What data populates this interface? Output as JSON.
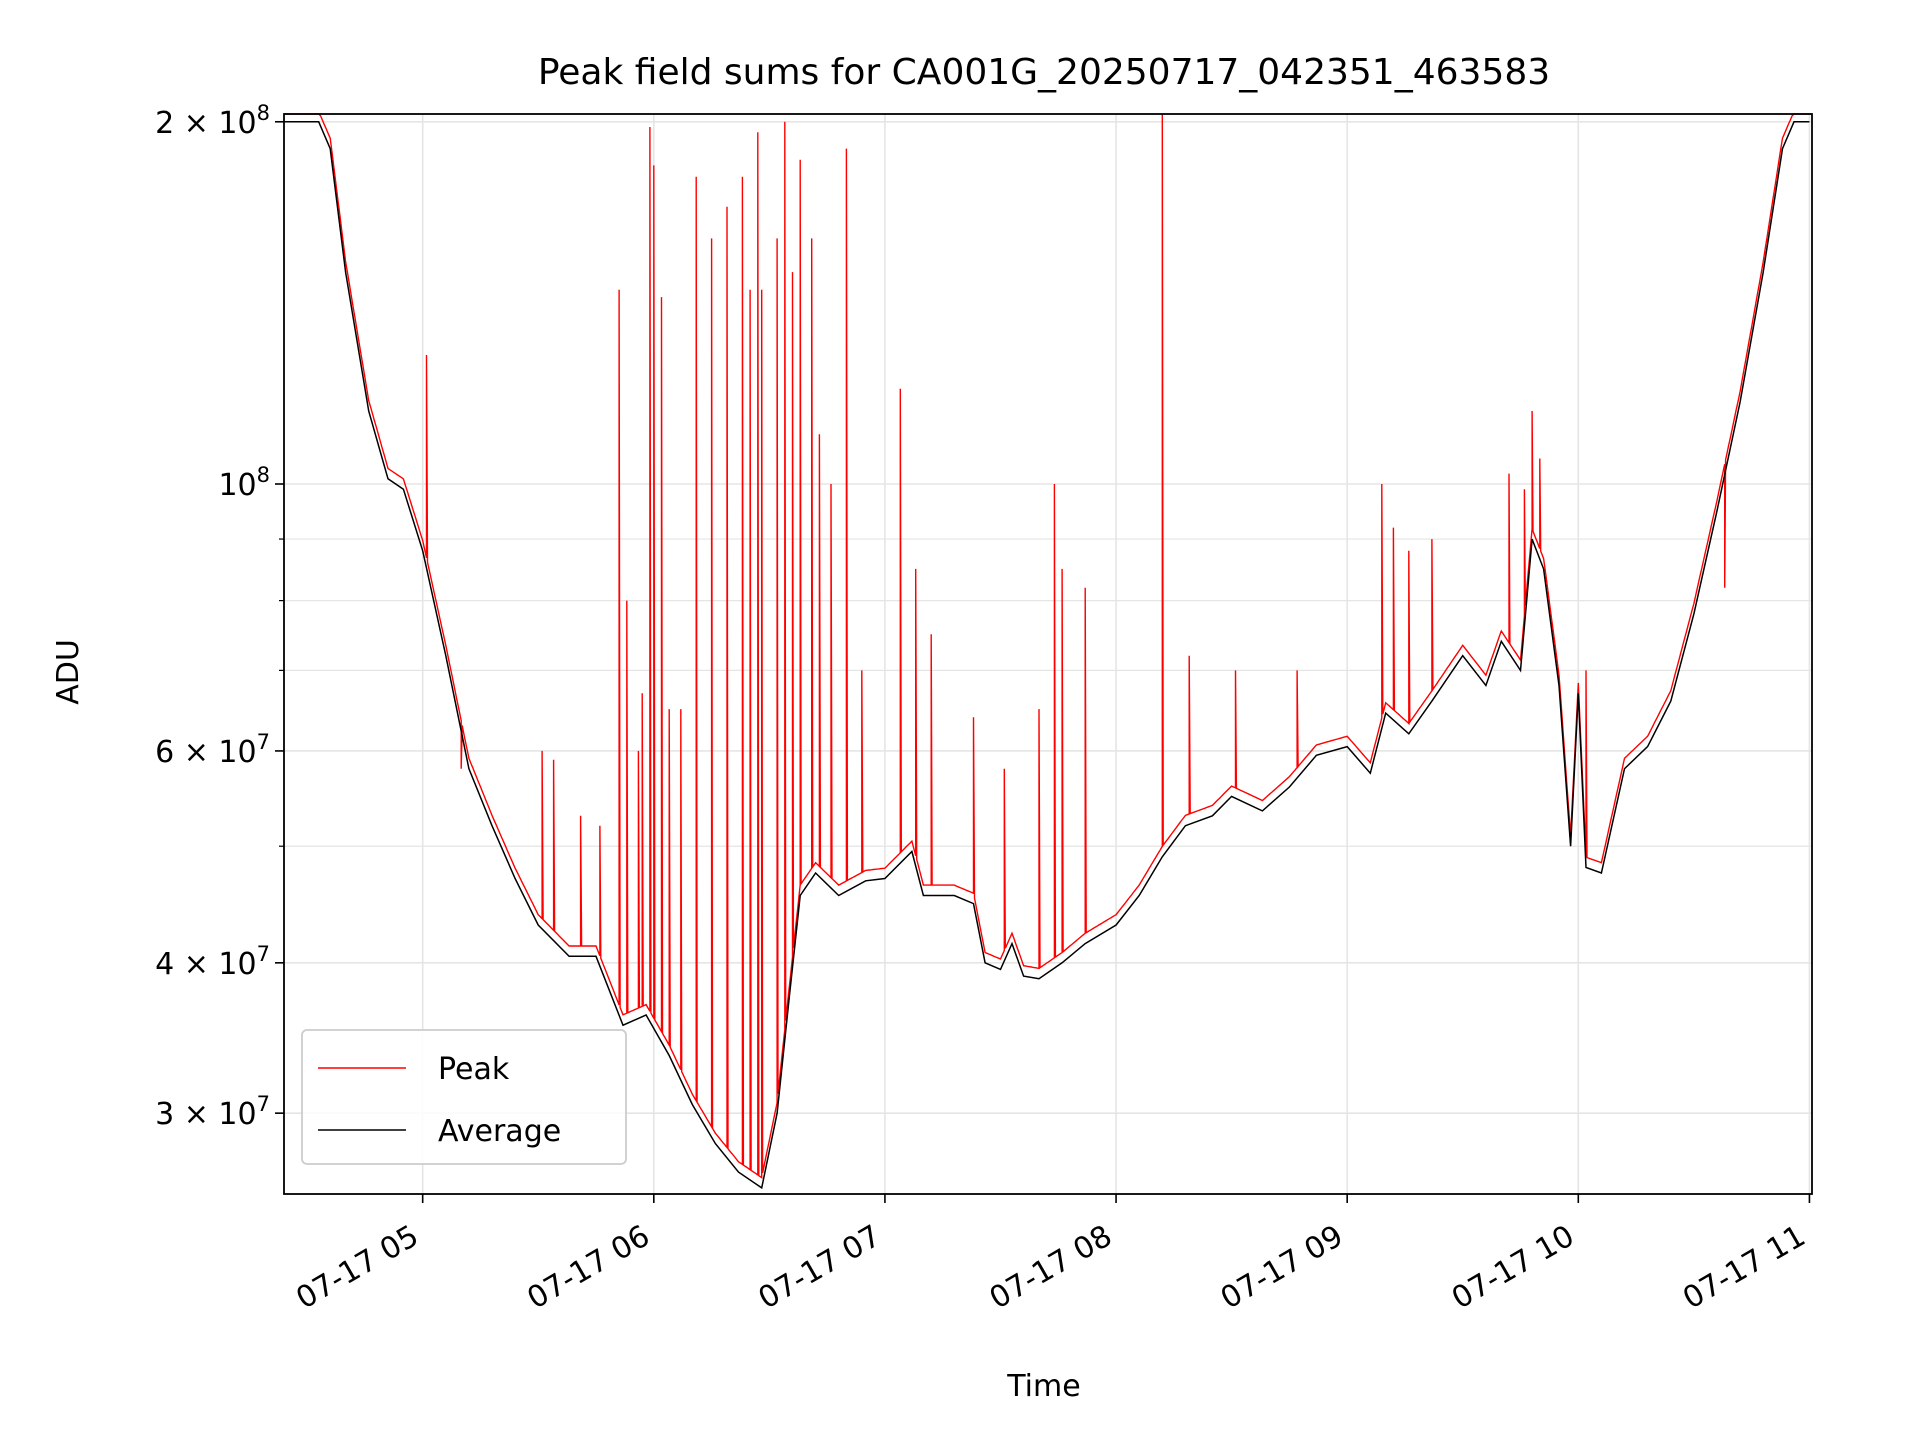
{
  "chart_data": {
    "type": "line",
    "title": "Peak field sums for CA001G_20250717_042351_463583",
    "xlabel": "Time",
    "ylabel": "ADU",
    "y_scale": "log",
    "x_range": [
      "2025-07-17T04:24:00",
      "2025-07-17T11:00:40"
    ],
    "ylim": [
      25700000,
      203000000
    ],
    "grid": true,
    "legend_position": "lower-left",
    "x_ticks": [
      {
        "t": "2025-07-17T05:00",
        "label": "07-17 05"
      },
      {
        "t": "2025-07-17T06:00",
        "label": "07-17 06"
      },
      {
        "t": "2025-07-17T07:00",
        "label": "07-17 07"
      },
      {
        "t": "2025-07-17T08:00",
        "label": "07-17 08"
      },
      {
        "t": "2025-07-17T09:00",
        "label": "07-17 09"
      },
      {
        "t": "2025-07-17T10:00",
        "label": "07-17 10"
      },
      {
        "t": "2025-07-17T11:00",
        "label": "07-17 11"
      }
    ],
    "y_ticks_major": [
      {
        "v": 30000000,
        "base": "3 × 10",
        "exp": "7"
      },
      {
        "v": 40000000,
        "base": "4 × 10",
        "exp": "7"
      },
      {
        "v": 60000000,
        "base": "6 × 10",
        "exp": "7"
      },
      {
        "v": 100000000,
        "base": "10",
        "exp": "8"
      },
      {
        "v": 200000000,
        "base": "2 × 10",
        "exp": "8"
      }
    ],
    "y_ticks_minor": [
      50000000,
      70000000,
      80000000,
      90000000
    ],
    "series": [
      {
        "name": "Average",
        "color": "#000000",
        "points": [
          [
            "2025-07-17T04:24",
            200000000
          ],
          [
            "2025-07-17T04:33",
            200000000
          ],
          [
            "2025-07-17T04:36",
            190000000
          ],
          [
            "2025-07-17T04:40",
            150000000
          ],
          [
            "2025-07-17T04:46",
            115000000
          ],
          [
            "2025-07-17T04:51",
            101000000
          ],
          [
            "2025-07-17T04:55",
            99000000
          ],
          [
            "2025-07-17T05:00",
            88000000
          ],
          [
            "2025-07-17T05:06",
            72000000
          ],
          [
            "2025-07-17T05:12",
            58000000
          ],
          [
            "2025-07-17T05:18",
            52000000
          ],
          [
            "2025-07-17T05:24",
            47000000
          ],
          [
            "2025-07-17T05:30",
            43000000
          ],
          [
            "2025-07-17T05:38",
            40500000
          ],
          [
            "2025-07-17T05:45",
            40500000
          ],
          [
            "2025-07-17T05:52",
            35500000
          ],
          [
            "2025-07-17T05:58",
            36200000
          ],
          [
            "2025-07-17T06:04",
            33500000
          ],
          [
            "2025-07-17T06:10",
            30500000
          ],
          [
            "2025-07-17T06:16",
            28300000
          ],
          [
            "2025-07-17T06:22",
            26800000
          ],
          [
            "2025-07-17T06:28",
            26000000
          ],
          [
            "2025-07-17T06:32",
            30000000
          ],
          [
            "2025-07-17T06:35",
            37000000
          ],
          [
            "2025-07-17T06:38",
            45500000
          ],
          [
            "2025-07-17T06:42",
            47500000
          ],
          [
            "2025-07-17T06:48",
            45500000
          ],
          [
            "2025-07-17T06:55",
            46800000
          ],
          [
            "2025-07-17T07:00",
            47000000
          ],
          [
            "2025-07-17T07:07",
            49500000
          ],
          [
            "2025-07-17T07:10",
            45500000
          ],
          [
            "2025-07-17T07:18",
            45500000
          ],
          [
            "2025-07-17T07:23",
            44800000
          ],
          [
            "2025-07-17T07:26",
            40000000
          ],
          [
            "2025-07-17T07:30",
            39500000
          ],
          [
            "2025-07-17T07:33",
            41500000
          ],
          [
            "2025-07-17T07:36",
            39000000
          ],
          [
            "2025-07-17T07:40",
            38800000
          ],
          [
            "2025-07-17T07:46",
            40000000
          ],
          [
            "2025-07-17T07:52",
            41500000
          ],
          [
            "2025-07-17T08:00",
            43000000
          ],
          [
            "2025-07-17T08:06",
            45500000
          ],
          [
            "2025-07-17T08:12",
            49000000
          ],
          [
            "2025-07-17T08:18",
            52000000
          ],
          [
            "2025-07-17T08:25",
            53000000
          ],
          [
            "2025-07-17T08:30",
            55000000
          ],
          [
            "2025-07-17T08:38",
            53500000
          ],
          [
            "2025-07-17T08:45",
            56000000
          ],
          [
            "2025-07-17T08:52",
            59500000
          ],
          [
            "2025-07-17T09:00",
            60500000
          ],
          [
            "2025-07-17T09:06",
            57500000
          ],
          [
            "2025-07-17T09:10",
            64500000
          ],
          [
            "2025-07-17T09:16",
            62000000
          ],
          [
            "2025-07-17T09:22",
            66000000
          ],
          [
            "2025-07-17T09:30",
            72000000
          ],
          [
            "2025-07-17T09:36",
            68000000
          ],
          [
            "2025-07-17T09:40",
            74000000
          ],
          [
            "2025-07-17T09:45",
            70000000
          ],
          [
            "2025-07-17T09:48",
            90000000
          ],
          [
            "2025-07-17T09:51",
            85000000
          ],
          [
            "2025-07-17T09:55",
            68000000
          ],
          [
            "2025-07-17T09:58",
            50000000
          ],
          [
            "2025-07-17T10:00",
            67000000
          ],
          [
            "2025-07-17T10:02",
            48000000
          ],
          [
            "2025-07-17T10:06",
            47500000
          ],
          [
            "2025-07-17T10:12",
            58000000
          ],
          [
            "2025-07-17T10:18",
            60500000
          ],
          [
            "2025-07-17T10:24",
            66000000
          ],
          [
            "2025-07-17T10:30",
            78000000
          ],
          [
            "2025-07-17T10:36",
            95000000
          ],
          [
            "2025-07-17T10:42",
            117000000
          ],
          [
            "2025-07-17T10:48",
            150000000
          ],
          [
            "2025-07-17T10:53",
            190000000
          ],
          [
            "2025-07-17T10:56",
            200000000
          ],
          [
            "2025-07-17T11:00",
            200000000
          ]
        ]
      },
      {
        "name": "Peak",
        "color": "#ff0000",
        "spikes": [
          [
            "2025-07-17T05:01",
            128000000
          ],
          [
            "2025-07-17T05:10",
            58000000
          ],
          [
            "2025-07-17T05:31",
            60000000
          ],
          [
            "2025-07-17T05:34",
            59000000
          ],
          [
            "2025-07-17T05:41",
            53000000
          ],
          [
            "2025-07-17T05:46",
            52000000
          ],
          [
            "2025-07-17T05:51",
            145000000
          ],
          [
            "2025-07-17T05:53",
            80000000
          ],
          [
            "2025-07-17T05:56",
            60000000
          ],
          [
            "2025-07-17T05:57",
            67000000
          ],
          [
            "2025-07-17T05:59",
            198000000
          ],
          [
            "2025-07-17T06:00",
            184000000
          ],
          [
            "2025-07-17T06:02",
            143000000
          ],
          [
            "2025-07-17T06:04",
            65000000
          ],
          [
            "2025-07-17T06:07",
            65000000
          ],
          [
            "2025-07-17T06:11",
            180000000
          ],
          [
            "2025-07-17T06:15",
            160000000
          ],
          [
            "2025-07-17T06:19",
            170000000
          ],
          [
            "2025-07-17T06:23",
            180000000
          ],
          [
            "2025-07-17T06:25",
            145000000
          ],
          [
            "2025-07-17T06:27",
            196000000
          ],
          [
            "2025-07-17T06:28",
            145000000
          ],
          [
            "2025-07-17T06:32",
            160000000
          ],
          [
            "2025-07-17T06:34",
            200000000
          ],
          [
            "2025-07-17T06:36",
            150000000
          ],
          [
            "2025-07-17T06:38",
            186000000
          ],
          [
            "2025-07-17T06:41",
            160000000
          ],
          [
            "2025-07-17T06:43",
            110000000
          ],
          [
            "2025-07-17T06:46",
            100000000
          ],
          [
            "2025-07-17T06:50",
            190000000
          ],
          [
            "2025-07-17T06:54",
            70000000
          ],
          [
            "2025-07-17T07:04",
            120000000
          ],
          [
            "2025-07-17T07:08",
            85000000
          ],
          [
            "2025-07-17T07:12",
            75000000
          ],
          [
            "2025-07-17T07:23",
            64000000
          ],
          [
            "2025-07-17T07:31",
            58000000
          ],
          [
            "2025-07-17T07:40",
            65000000
          ],
          [
            "2025-07-17T07:44",
            100000000
          ],
          [
            "2025-07-17T07:46",
            85000000
          ],
          [
            "2025-07-17T07:52",
            82000000
          ],
          [
            "2025-07-17T08:12",
            205000000
          ],
          [
            "2025-07-17T08:19",
            72000000
          ],
          [
            "2025-07-17T08:31",
            70000000
          ],
          [
            "2025-07-17T08:47",
            70000000
          ],
          [
            "2025-07-17T09:09",
            100000000
          ],
          [
            "2025-07-17T09:12",
            92000000
          ],
          [
            "2025-07-17T09:16",
            88000000
          ],
          [
            "2025-07-17T09:22",
            90000000
          ],
          [
            "2025-07-17T09:42",
            102000000
          ],
          [
            "2025-07-17T09:46",
            99000000
          ],
          [
            "2025-07-17T09:48",
            115000000
          ],
          [
            "2025-07-17T09:50",
            105000000
          ],
          [
            "2025-07-17T10:02",
            70000000
          ],
          [
            "2025-07-17T10:38",
            82000000
          ]
        ]
      }
    ]
  }
}
